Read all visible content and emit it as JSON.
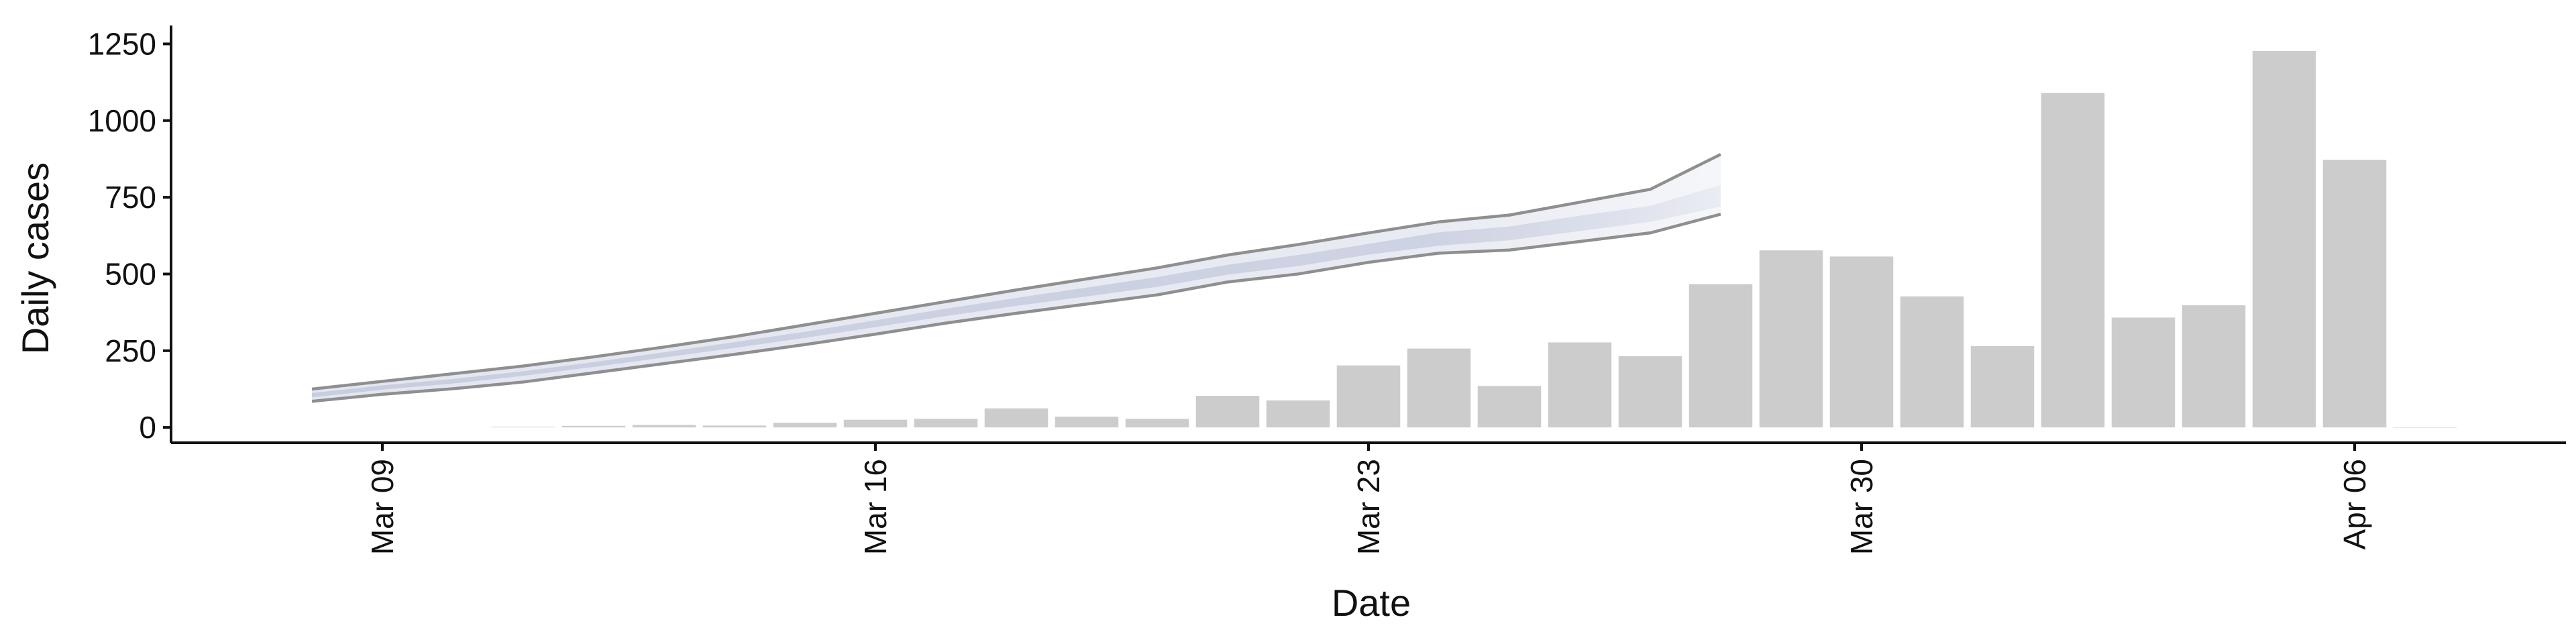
{
  "chart_data": {
    "type": "bar",
    "xlabel": "Date",
    "ylabel": "Daily cases",
    "ylim": [
      -50,
      1310
    ],
    "xlim": [
      "2020-03-06",
      "2020-04-09"
    ],
    "yticks": [
      0,
      250,
      500,
      750,
      1000,
      1250
    ],
    "ytick_labels": [
      "0",
      "250",
      "500",
      "750",
      "1000",
      "1250"
    ],
    "xticks": [
      "2020-03-09",
      "2020-03-16",
      "2020-03-23",
      "2020-03-30",
      "2020-04-06"
    ],
    "xtick_labels": [
      "Mar 09",
      "Mar 16",
      "Mar 23",
      "Mar 30",
      "Apr 06"
    ],
    "grid": false,
    "series": [
      {
        "type": "bar",
        "color": "#cccccc",
        "x": [
          "2020-03-11",
          "2020-03-12",
          "2020-03-13",
          "2020-03-14",
          "2020-03-15",
          "2020-03-16",
          "2020-03-17",
          "2020-03-18",
          "2020-03-19",
          "2020-03-20",
          "2020-03-21",
          "2020-03-22",
          "2020-03-23",
          "2020-03-24",
          "2020-03-25",
          "2020-03-26",
          "2020-03-27",
          "2020-03-28",
          "2020-03-29",
          "2020-03-30",
          "2020-03-31",
          "2020-04-01",
          "2020-04-02",
          "2020-04-03",
          "2020-04-04",
          "2020-04-05",
          "2020-04-06",
          "2020-04-07"
        ],
        "values": [
          2,
          5,
          8,
          6,
          15,
          25,
          28,
          62,
          35,
          28,
          103,
          88,
          202,
          257,
          135,
          277,
          232,
          467,
          577,
          557,
          427,
          265,
          1090,
          358,
          398,
          1227,
          872,
          0
        ]
      },
      {
        "type": "band",
        "color": "#c8cde0",
        "x": [
          "2020-03-08",
          "2020-03-09",
          "2020-03-10",
          "2020-03-11",
          "2020-03-12",
          "2020-03-13",
          "2020-03-14",
          "2020-03-15",
          "2020-03-16",
          "2020-03-17",
          "2020-03-18",
          "2020-03-19",
          "2020-03-20",
          "2020-03-21",
          "2020-03-22",
          "2020-03-23",
          "2020-03-24",
          "2020-03-25",
          "2020-03-26",
          "2020-03-27",
          "2020-03-28"
        ],
        "lower": [
          85,
          108,
          126,
          148,
          178,
          208,
          238,
          270,
          304,
          340,
          372,
          402,
          432,
          474,
          500,
          538,
          568,
          578,
          606,
          634,
          695
        ],
        "upper": [
          125,
          150,
          175,
          200,
          230,
          262,
          296,
          334,
          372,
          410,
          448,
          484,
          520,
          562,
          596,
          634,
          670,
          692,
          734,
          776,
          890
        ],
        "inner_lower": [
          98,
          123,
          143,
          168,
          197,
          228,
          259,
          292,
          327,
          363,
          396,
          427,
          458,
          498,
          526,
          563,
          592,
          610,
          640,
          670,
          720
        ],
        "inner_upper": [
          112,
          137,
          158,
          183,
          213,
          245,
          278,
          312,
          349,
          387,
          422,
          456,
          490,
          530,
          562,
          598,
          636,
          655,
          690,
          722,
          790
        ]
      }
    ]
  }
}
